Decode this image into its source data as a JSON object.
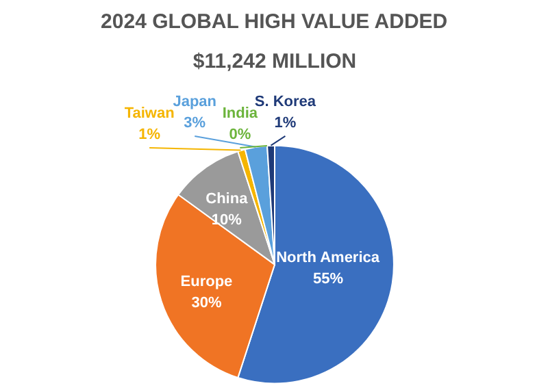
{
  "chart_data": {
    "type": "pie",
    "title": "2024 GLOBAL HIGH VALUE ADDED",
    "subtitle": "$11,242 MILLION",
    "categories": [
      "North America",
      "Europe",
      "China",
      "Taiwan",
      "Japan",
      "India",
      "S. Korea"
    ],
    "values": [
      55,
      30,
      10,
      1,
      3,
      0,
      1
    ],
    "colors": [
      "#3a6fc0",
      "#f07424",
      "#9a9a9a",
      "#f5b500",
      "#5aa0dc",
      "#6cb43c",
      "#1f3a78"
    ],
    "value_labels": [
      "55%",
      "30%",
      "10%",
      "1%",
      "3%",
      "0%",
      "1%"
    ]
  }
}
